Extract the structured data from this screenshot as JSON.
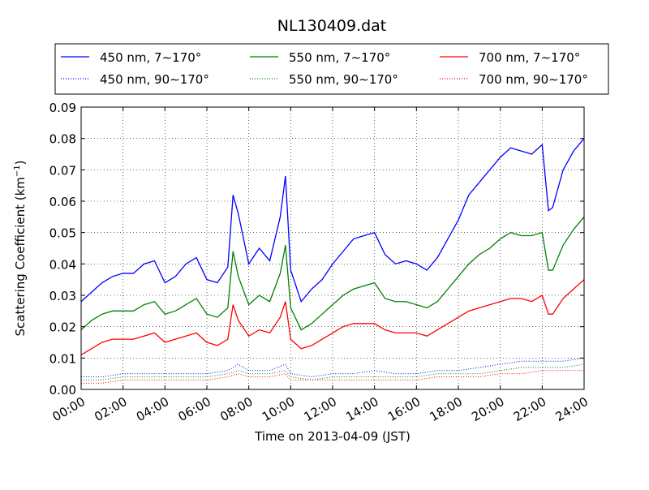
{
  "chart_data": {
    "type": "line",
    "title": "NL130409.dat",
    "xlabel": "Time on 2013-04-09 (JST)",
    "ylabel": "Scattering Coefficient (km",
    "ylabel_sup": "−1",
    "ylabel_end": ")",
    "xlim": [
      0,
      24
    ],
    "ylim": [
      0,
      0.09
    ],
    "x_ticks": [
      0,
      2,
      4,
      6,
      8,
      10,
      12,
      14,
      16,
      18,
      20,
      22,
      24
    ],
    "x_tick_labels": [
      "00:00",
      "02:00",
      "04:00",
      "06:00",
      "08:00",
      "10:00",
      "12:00",
      "14:00",
      "16:00",
      "18:00",
      "20:00",
      "22:00",
      "24:00"
    ],
    "y_ticks": [
      0,
      0.01,
      0.02,
      0.03,
      0.04,
      0.05,
      0.06,
      0.07,
      0.08,
      0.09
    ],
    "y_tick_labels": [
      "0.00",
      "0.01",
      "0.02",
      "0.03",
      "0.04",
      "0.05",
      "0.06",
      "0.07",
      "0.08",
      "0.09"
    ],
    "grid": true,
    "legend_position": "top",
    "series": [
      {
        "name": "450 nm, 7∼170°",
        "color": "#0000ff",
        "style": "solid",
        "x": [
          0,
          0.5,
          1,
          1.5,
          2,
          2.5,
          3,
          3.5,
          4,
          4.5,
          5,
          5.5,
          6,
          6.5,
          7,
          7.25,
          7.5,
          8,
          8.5,
          9,
          9.5,
          9.75,
          10,
          10.5,
          11,
          11.5,
          12,
          12.5,
          13,
          13.5,
          14,
          14.5,
          15,
          15.5,
          16,
          16.5,
          17,
          17.5,
          18,
          18.5,
          19,
          19.5,
          20,
          20.5,
          21,
          21.5,
          22,
          22.3,
          22.5,
          23,
          23.5,
          24
        ],
        "y": [
          0.028,
          0.031,
          0.034,
          0.036,
          0.037,
          0.037,
          0.04,
          0.041,
          0.034,
          0.036,
          0.04,
          0.042,
          0.035,
          0.034,
          0.039,
          0.062,
          0.056,
          0.04,
          0.045,
          0.041,
          0.055,
          0.068,
          0.038,
          0.028,
          0.032,
          0.035,
          0.04,
          0.044,
          0.048,
          0.049,
          0.05,
          0.043,
          0.04,
          0.041,
          0.04,
          0.038,
          0.042,
          0.048,
          0.054,
          0.062,
          0.066,
          0.07,
          0.074,
          0.077,
          0.076,
          0.075,
          0.078,
          0.057,
          0.058,
          0.07,
          0.076,
          0.08
        ]
      },
      {
        "name": "550 nm, 7∼170°",
        "color": "#008000",
        "style": "solid",
        "x": [
          0,
          0.5,
          1,
          1.5,
          2,
          2.5,
          3,
          3.5,
          4,
          4.5,
          5,
          5.5,
          6,
          6.5,
          7,
          7.25,
          7.5,
          8,
          8.5,
          9,
          9.5,
          9.75,
          10,
          10.5,
          11,
          11.5,
          12,
          12.5,
          13,
          13.5,
          14,
          14.5,
          15,
          15.5,
          16,
          16.5,
          17,
          17.5,
          18,
          18.5,
          19,
          19.5,
          20,
          20.5,
          21,
          21.5,
          22,
          22.3,
          22.5,
          23,
          23.5,
          24
        ],
        "y": [
          0.019,
          0.022,
          0.024,
          0.025,
          0.025,
          0.025,
          0.027,
          0.028,
          0.024,
          0.025,
          0.027,
          0.029,
          0.024,
          0.023,
          0.026,
          0.044,
          0.036,
          0.027,
          0.03,
          0.028,
          0.037,
          0.046,
          0.026,
          0.019,
          0.021,
          0.024,
          0.027,
          0.03,
          0.032,
          0.033,
          0.034,
          0.029,
          0.028,
          0.028,
          0.027,
          0.026,
          0.028,
          0.032,
          0.036,
          0.04,
          0.043,
          0.045,
          0.048,
          0.05,
          0.049,
          0.049,
          0.05,
          0.038,
          0.038,
          0.046,
          0.051,
          0.055
        ]
      },
      {
        "name": "700 nm, 7∼170°",
        "color": "#ff0000",
        "style": "solid",
        "x": [
          0,
          0.5,
          1,
          1.5,
          2,
          2.5,
          3,
          3.5,
          4,
          4.5,
          5,
          5.5,
          6,
          6.5,
          7,
          7.25,
          7.5,
          8,
          8.5,
          9,
          9.5,
          9.75,
          10,
          10.5,
          11,
          11.5,
          12,
          12.5,
          13,
          13.5,
          14,
          14.5,
          15,
          15.5,
          16,
          16.5,
          17,
          17.5,
          18,
          18.5,
          19,
          19.5,
          20,
          20.5,
          21,
          21.5,
          22,
          22.3,
          22.5,
          23,
          23.5,
          24
        ],
        "y": [
          0.011,
          0.013,
          0.015,
          0.016,
          0.016,
          0.016,
          0.017,
          0.018,
          0.015,
          0.016,
          0.017,
          0.018,
          0.015,
          0.014,
          0.016,
          0.027,
          0.022,
          0.017,
          0.019,
          0.018,
          0.023,
          0.028,
          0.016,
          0.013,
          0.014,
          0.016,
          0.018,
          0.02,
          0.021,
          0.021,
          0.021,
          0.019,
          0.018,
          0.018,
          0.018,
          0.017,
          0.019,
          0.021,
          0.023,
          0.025,
          0.026,
          0.027,
          0.028,
          0.029,
          0.029,
          0.028,
          0.03,
          0.024,
          0.024,
          0.029,
          0.032,
          0.035
        ]
      },
      {
        "name": "450 nm, 90∼170°",
        "color": "#0000ff",
        "style": "dotted",
        "x": [
          0,
          1,
          2,
          3,
          4,
          5,
          6,
          7,
          7.5,
          8,
          9,
          9.75,
          10,
          11,
          12,
          13,
          14,
          15,
          16,
          17,
          18,
          19,
          20,
          21,
          22,
          23,
          24
        ],
        "y": [
          0.004,
          0.004,
          0.005,
          0.005,
          0.005,
          0.005,
          0.005,
          0.006,
          0.008,
          0.006,
          0.006,
          0.008,
          0.005,
          0.004,
          0.005,
          0.005,
          0.006,
          0.005,
          0.005,
          0.006,
          0.006,
          0.007,
          0.008,
          0.009,
          0.009,
          0.009,
          0.01
        ]
      },
      {
        "name": "550 nm, 90∼170°",
        "color": "#008000",
        "style": "dotted",
        "x": [
          0,
          1,
          2,
          3,
          4,
          5,
          6,
          7,
          7.5,
          8,
          9,
          9.75,
          10,
          11,
          12,
          13,
          14,
          15,
          16,
          17,
          18,
          19,
          20,
          21,
          22,
          23,
          24
        ],
        "y": [
          0.003,
          0.003,
          0.004,
          0.004,
          0.004,
          0.004,
          0.004,
          0.005,
          0.006,
          0.005,
          0.005,
          0.006,
          0.004,
          0.003,
          0.004,
          0.004,
          0.004,
          0.004,
          0.004,
          0.005,
          0.005,
          0.005,
          0.006,
          0.007,
          0.007,
          0.007,
          0.008
        ]
      },
      {
        "name": "700 nm, 90∼170°",
        "color": "#ff0000",
        "style": "dotted",
        "x": [
          0,
          1,
          2,
          3,
          4,
          5,
          6,
          7,
          7.5,
          8,
          9,
          9.75,
          10,
          11,
          12,
          13,
          14,
          15,
          16,
          17,
          18,
          19,
          20,
          21,
          22,
          23,
          24
        ],
        "y": [
          0.002,
          0.002,
          0.003,
          0.003,
          0.003,
          0.003,
          0.003,
          0.004,
          0.005,
          0.004,
          0.004,
          0.005,
          0.003,
          0.003,
          0.003,
          0.003,
          0.003,
          0.003,
          0.003,
          0.004,
          0.004,
          0.004,
          0.005,
          0.005,
          0.006,
          0.006,
          0.006
        ]
      }
    ]
  }
}
